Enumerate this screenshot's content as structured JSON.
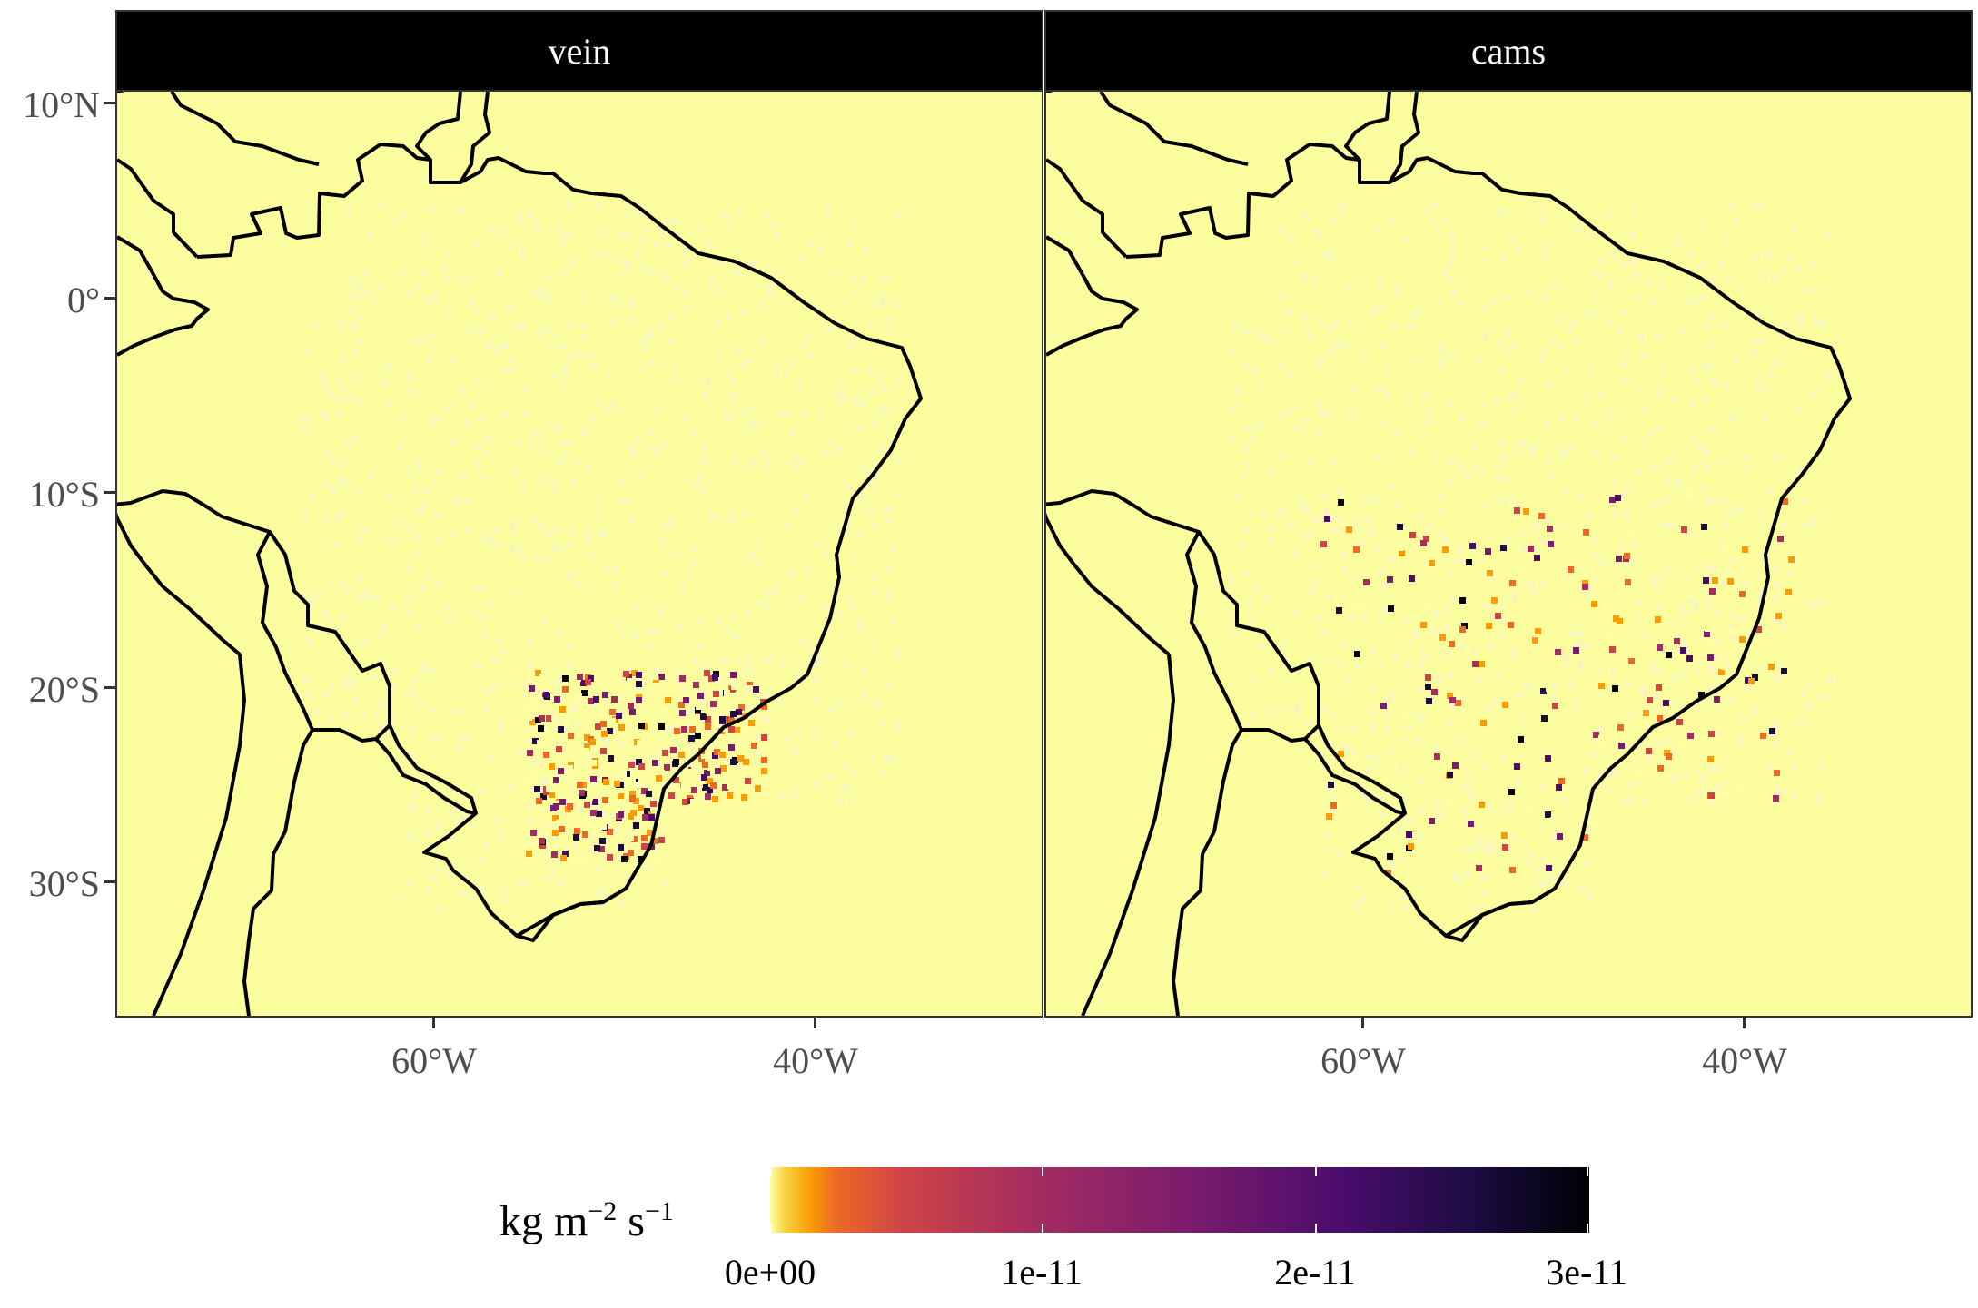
{
  "panels": [
    {
      "label": "vein"
    },
    {
      "label": "cams"
    }
  ],
  "y_axis_labels": [
    "10°N",
    "0°",
    "10°S",
    "20°S",
    "30°S"
  ],
  "x_axis_labels": [
    "60°W",
    "40°W"
  ],
  "legend": {
    "title_base": "kg m",
    "title_exp1": "−2",
    "title_mid": " s",
    "title_exp2": "−1",
    "ticks": [
      "0e+00",
      "1e-11",
      "2e-11",
      "3e-11"
    ]
  },
  "colors": {
    "background": "#fbfd9e",
    "land_low": "#f9f7b8",
    "scale": [
      "#fcffa4",
      "#fb9b06",
      "#ed6925",
      "#cf4446",
      "#a52c60",
      "#781c6d",
      "#4a0c6b",
      "#1b0c41",
      "#000004"
    ]
  }
}
